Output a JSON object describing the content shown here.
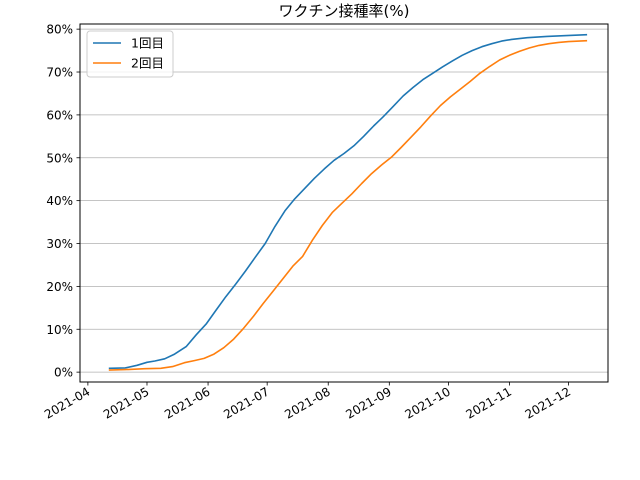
{
  "chart_data": {
    "type": "line",
    "title": "ワクチン接種率(%)",
    "xlabel": "",
    "ylabel": "",
    "x_ticks": [
      "2021-04",
      "2021-05",
      "2021-06",
      "2021-07",
      "2021-08",
      "2021-09",
      "2021-10",
      "2021-11",
      "2021-12"
    ],
    "y_ticks": [
      "0%",
      "10%",
      "20%",
      "30%",
      "40%",
      "50%",
      "60%",
      "70%",
      "80%"
    ],
    "ylim": [
      -2.3,
      81.2
    ],
    "xlim": [
      "2021-03-28",
      "2021-12-21"
    ],
    "grid": "horizontal",
    "legend_position": "top-left",
    "colors": [
      "#1f77b4",
      "#ff7f0e"
    ],
    "series": [
      {
        "name": "1回目",
        "points": [
          [
            "2021-04-12",
            0.9
          ],
          [
            "2021-04-20",
            1.0
          ],
          [
            "2021-04-26",
            1.6
          ],
          [
            "2021-05-01",
            2.3
          ],
          [
            "2021-05-05",
            2.6
          ],
          [
            "2021-05-10",
            3.1
          ],
          [
            "2021-05-15",
            4.2
          ],
          [
            "2021-05-21",
            6.0
          ],
          [
            "2021-05-26",
            8.7
          ],
          [
            "2021-05-31",
            11.2
          ],
          [
            "2021-06-05",
            14.4
          ],
          [
            "2021-06-10",
            17.6
          ],
          [
            "2021-06-15",
            20.5
          ],
          [
            "2021-06-20",
            23.6
          ],
          [
            "2021-06-25",
            26.8
          ],
          [
            "2021-06-30",
            30.0
          ],
          [
            "2021-07-05",
            34.0
          ],
          [
            "2021-07-10",
            37.6
          ],
          [
            "2021-07-15",
            40.4
          ],
          [
            "2021-07-20",
            42.8
          ],
          [
            "2021-07-25",
            45.2
          ],
          [
            "2021-07-30",
            47.4
          ],
          [
            "2021-08-04",
            49.4
          ],
          [
            "2021-08-09",
            51.0
          ],
          [
            "2021-08-14",
            52.8
          ],
          [
            "2021-08-19",
            55.0
          ],
          [
            "2021-08-24",
            57.4
          ],
          [
            "2021-08-29",
            59.6
          ],
          [
            "2021-09-03",
            62.0
          ],
          [
            "2021-09-08",
            64.4
          ],
          [
            "2021-09-13",
            66.4
          ],
          [
            "2021-09-18",
            68.2
          ],
          [
            "2021-09-23",
            69.7
          ],
          [
            "2021-09-28",
            71.2
          ],
          [
            "2021-10-03",
            72.6
          ],
          [
            "2021-10-08",
            73.9
          ],
          [
            "2021-10-13",
            75.0
          ],
          [
            "2021-10-18",
            75.9
          ],
          [
            "2021-10-23",
            76.6
          ],
          [
            "2021-10-28",
            77.2
          ],
          [
            "2021-11-02",
            77.6
          ],
          [
            "2021-11-10",
            78.0
          ],
          [
            "2021-11-20",
            78.3
          ],
          [
            "2021-11-30",
            78.5
          ],
          [
            "2021-12-10",
            78.7
          ]
        ]
      },
      {
        "name": "2回目",
        "points": [
          [
            "2021-04-12",
            0.5
          ],
          [
            "2021-04-20",
            0.6
          ],
          [
            "2021-04-30",
            0.8
          ],
          [
            "2021-05-08",
            0.9
          ],
          [
            "2021-05-14",
            1.3
          ],
          [
            "2021-05-20",
            2.2
          ],
          [
            "2021-05-25",
            2.7
          ],
          [
            "2021-05-30",
            3.2
          ],
          [
            "2021-06-04",
            4.2
          ],
          [
            "2021-06-09",
            5.7
          ],
          [
            "2021-06-14",
            7.7
          ],
          [
            "2021-06-19",
            10.2
          ],
          [
            "2021-06-24",
            13.0
          ],
          [
            "2021-06-29",
            16.0
          ],
          [
            "2021-07-04",
            18.9
          ],
          [
            "2021-07-09",
            21.8
          ],
          [
            "2021-07-14",
            24.7
          ],
          [
            "2021-07-19",
            27.0
          ],
          [
            "2021-07-24",
            30.8
          ],
          [
            "2021-07-29",
            34.2
          ],
          [
            "2021-08-03",
            37.2
          ],
          [
            "2021-08-08",
            39.4
          ],
          [
            "2021-08-13",
            41.6
          ],
          [
            "2021-08-18",
            44.0
          ],
          [
            "2021-08-23",
            46.3
          ],
          [
            "2021-08-28",
            48.3
          ],
          [
            "2021-09-02",
            50.1
          ],
          [
            "2021-09-07",
            52.4
          ],
          [
            "2021-09-12",
            54.8
          ],
          [
            "2021-09-17",
            57.2
          ],
          [
            "2021-09-22",
            59.8
          ],
          [
            "2021-09-27",
            62.2
          ],
          [
            "2021-10-02",
            64.2
          ],
          [
            "2021-10-07",
            66.0
          ],
          [
            "2021-10-12",
            67.8
          ],
          [
            "2021-10-17",
            69.7
          ],
          [
            "2021-10-22",
            71.3
          ],
          [
            "2021-10-27",
            72.8
          ],
          [
            "2021-11-01",
            73.9
          ],
          [
            "2021-11-06",
            74.8
          ],
          [
            "2021-11-11",
            75.6
          ],
          [
            "2021-11-16",
            76.2
          ],
          [
            "2021-11-21",
            76.6
          ],
          [
            "2021-11-26",
            76.9
          ],
          [
            "2021-12-01",
            77.1
          ],
          [
            "2021-12-10",
            77.3
          ]
        ]
      }
    ]
  }
}
